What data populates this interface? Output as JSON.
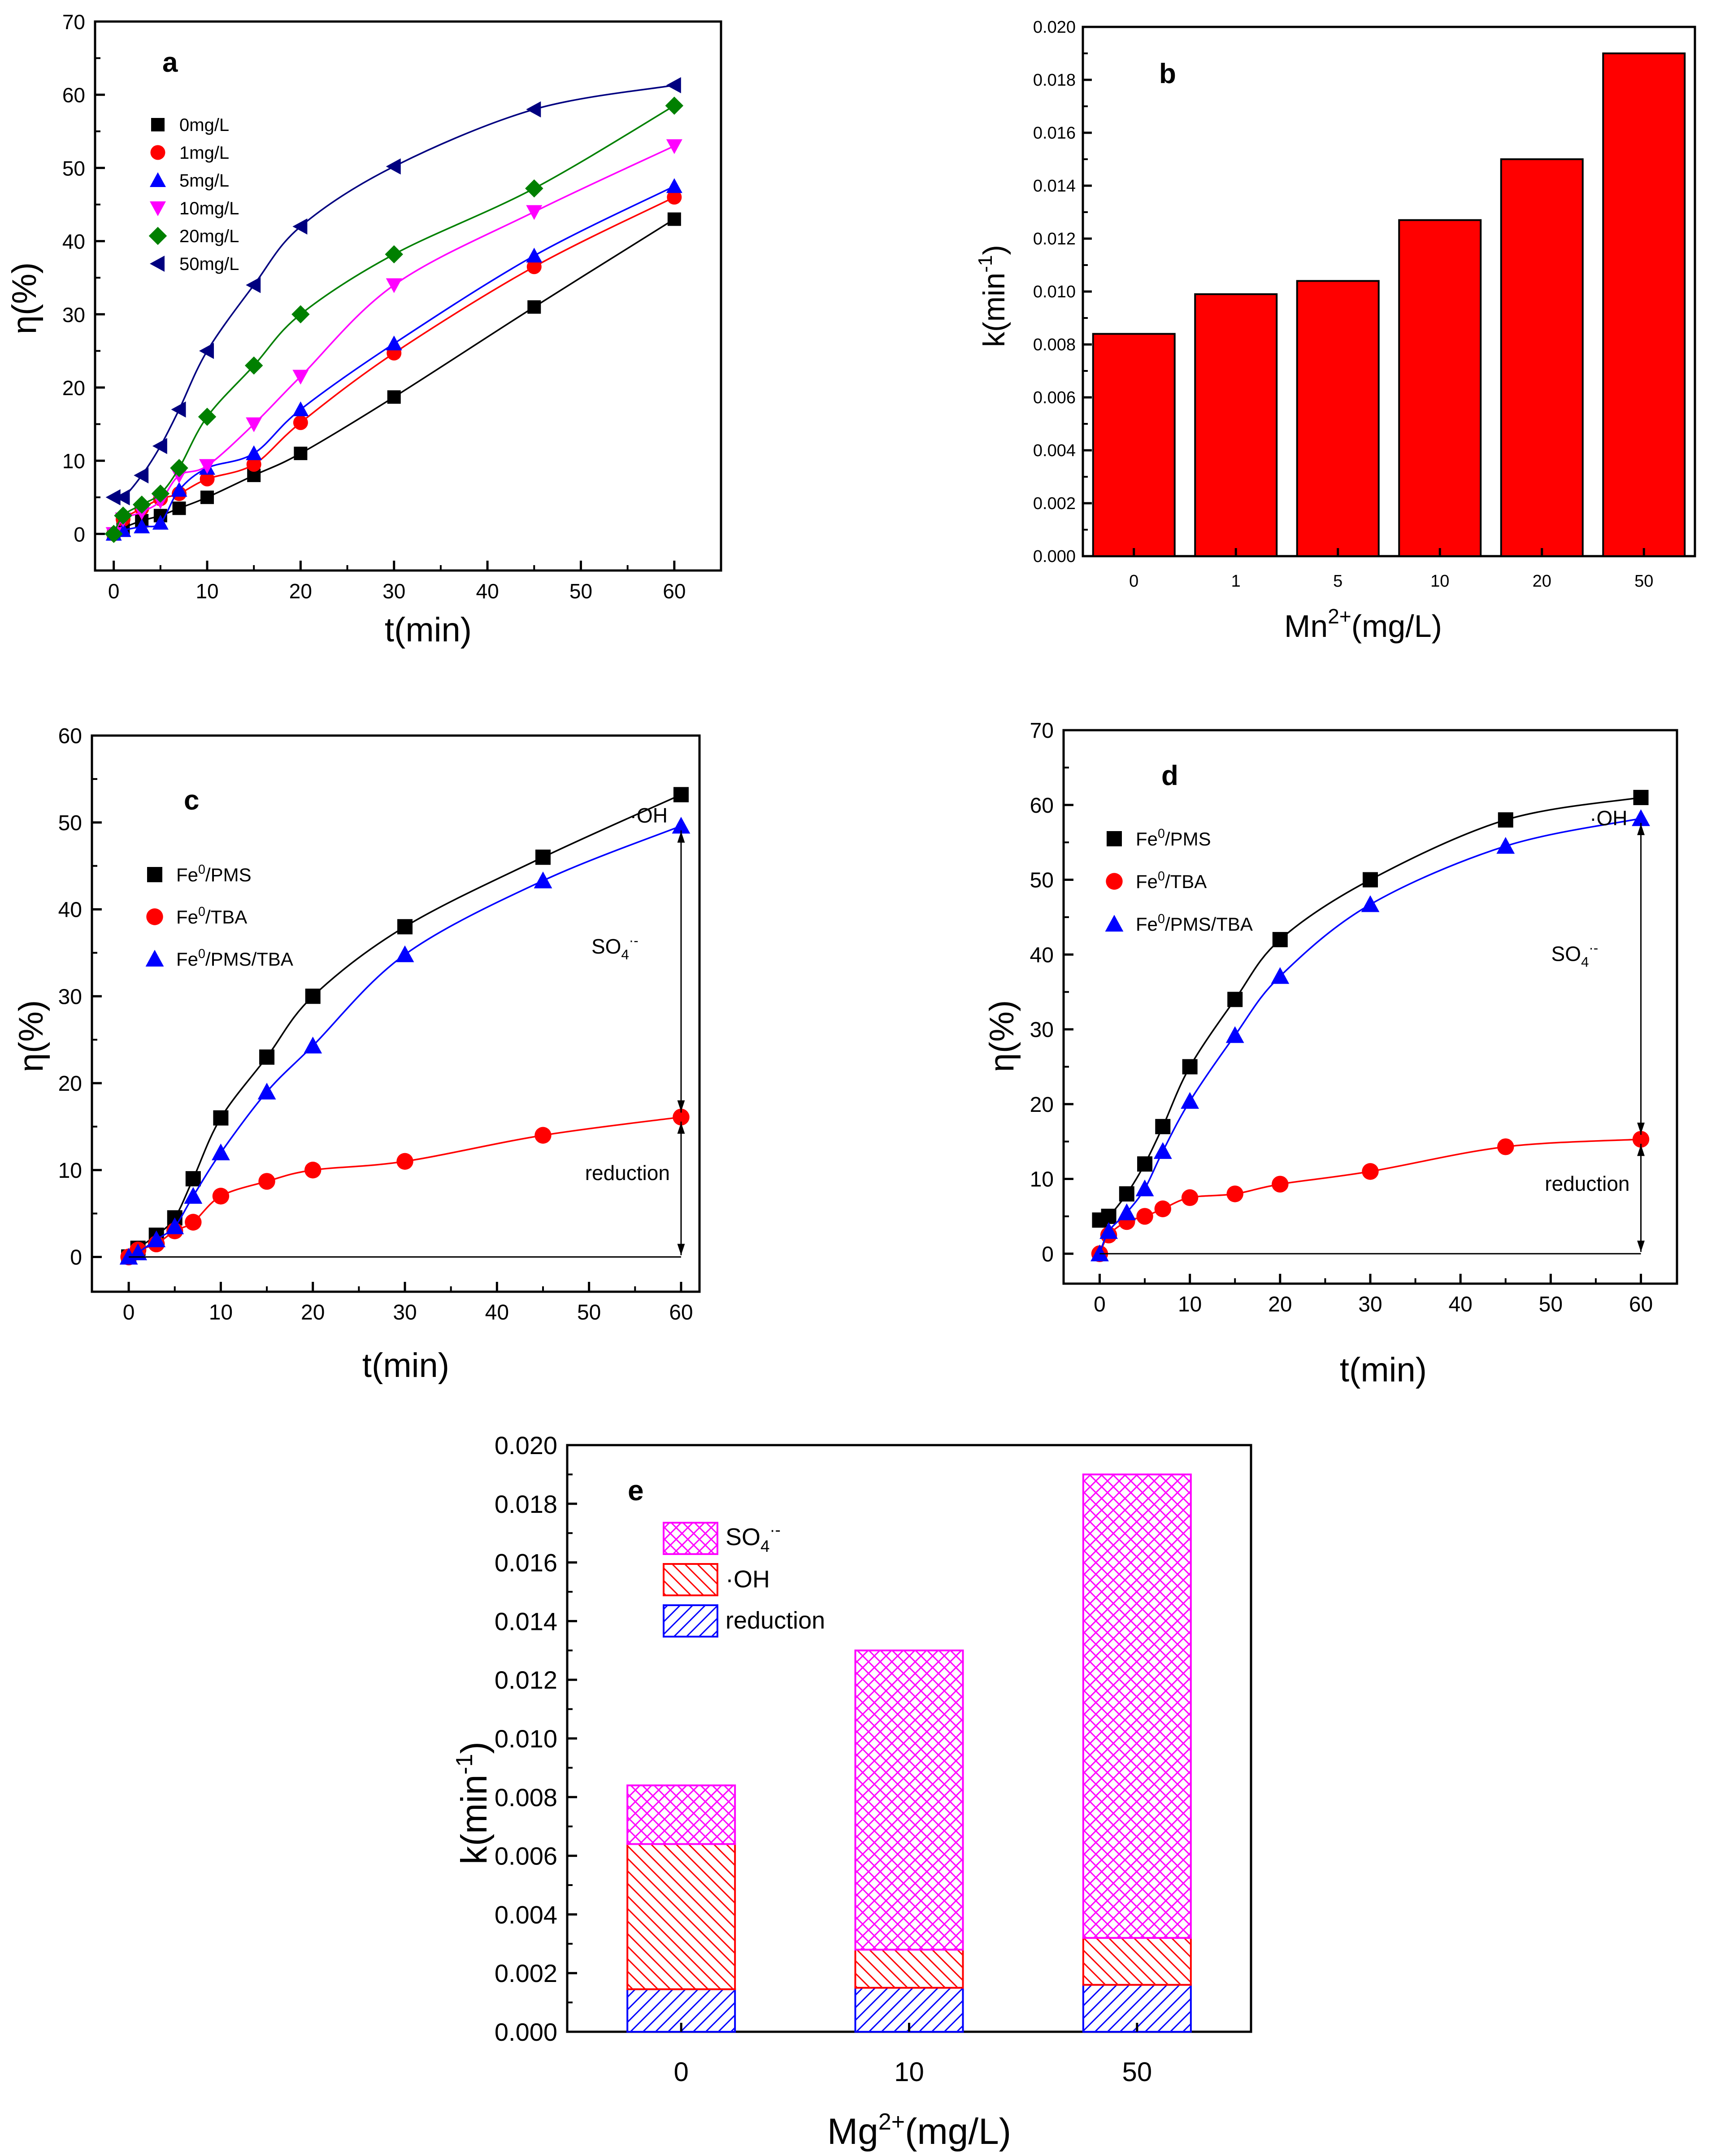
{
  "chart_data": [
    {
      "panel": "a",
      "type": "scatter",
      "fit": "line",
      "xlabel": "t(min)",
      "ylabel": "η(%)",
      "xlim": [
        -2,
        65
      ],
      "ylim": [
        -5,
        70
      ],
      "xticks": [
        "0",
        "10",
        "20",
        "30",
        "40",
        "50",
        "60"
      ],
      "yticks": [
        "0",
        "10",
        "20",
        "30",
        "40",
        "50",
        "60",
        "70"
      ],
      "x": [
        0,
        1,
        3,
        5,
        7,
        10,
        15,
        20,
        30,
        45,
        60
      ],
      "series": [
        {
          "name": "0mg/L",
          "marker": "square",
          "color": "#000000",
          "values": [
            0,
            0.8,
            1.8,
            2.5,
            3.5,
            5,
            8,
            11,
            18.7,
            31,
            43
          ]
        },
        {
          "name": "1mg/L",
          "marker": "circle",
          "color": "#ff0000",
          "values": [
            0,
            2,
            3.5,
            4.8,
            5.5,
            7.5,
            9.5,
            15.2,
            24.7,
            36.5,
            46
          ]
        },
        {
          "name": "5mg/L",
          "marker": "triangle-up",
          "color": "#0000ff",
          "values": [
            0,
            0.5,
            1,
            1.5,
            6,
            9,
            11,
            17,
            26,
            38,
            47.5
          ]
        },
        {
          "name": "10mg/L",
          "marker": "triangle-down",
          "color": "#ff00ff",
          "values": [
            0,
            2,
            3,
            4.5,
            8,
            9.3,
            15,
            21.5,
            34,
            44,
            53
          ]
        },
        {
          "name": "20mg/L",
          "marker": "diamond",
          "color": "#008000",
          "values": [
            0,
            2.5,
            4,
            5.5,
            9,
            16,
            23,
            30,
            38.2,
            47.2,
            58.5
          ]
        },
        {
          "name": "50mg/L",
          "marker": "triangle-left",
          "color": "#000080",
          "values": [
            5,
            5,
            8,
            12,
            17,
            25,
            34,
            42,
            50.2,
            58,
            61.3
          ]
        }
      ]
    },
    {
      "panel": "b",
      "type": "bar",
      "xlabel": "Mn2+(mg/L)",
      "ylabel": "k(min-1)",
      "categories": [
        "0",
        "1",
        "5",
        "10",
        "20",
        "50"
      ],
      "values": [
        0.0084,
        0.0099,
        0.0104,
        0.0127,
        0.015,
        0.019
      ],
      "ylim": [
        0,
        0.02
      ],
      "yticks": [
        "0.000",
        "0.002",
        "0.004",
        "0.006",
        "0.008",
        "0.010",
        "0.012",
        "0.014",
        "0.016",
        "0.018",
        "0.020"
      ],
      "bar_color": "#ff0000"
    },
    {
      "panel": "c",
      "type": "scatter",
      "fit": "line",
      "xlabel": "t(min)",
      "ylabel": "η(%)",
      "xlim": [
        -4,
        62
      ],
      "ylim": [
        -4,
        60
      ],
      "xticks": [
        "0",
        "10",
        "20",
        "30",
        "40",
        "50",
        "60"
      ],
      "yticks": [
        "0",
        "10",
        "20",
        "30",
        "40",
        "50",
        "60"
      ],
      "x": [
        0,
        1,
        3,
        5,
        7,
        10,
        15,
        20,
        30,
        45,
        60
      ],
      "series": [
        {
          "name": "Fe0/PMS",
          "marker": "square",
          "color": "#000000",
          "values": [
            0,
            1,
            2.5,
            4.5,
            9,
            16,
            23,
            30,
            38,
            46,
            53.2
          ]
        },
        {
          "name": "Fe0/TBA",
          "marker": "circle",
          "color": "#ff0000",
          "values": [
            0,
            0.8,
            1.5,
            3,
            4,
            7,
            8.7,
            10,
            11,
            14,
            16.1
          ]
        },
        {
          "name": "Fe0/PMS/TBA",
          "marker": "triangle-up",
          "color": "#0000ff",
          "values": [
            0,
            0.5,
            2,
            3.5,
            7,
            12,
            19,
            24.3,
            34.8,
            43.3,
            49.6
          ]
        }
      ],
      "annotations": {
        "oh": "·OH",
        "so4": "SO4·-",
        "reduction": "reduction"
      }
    },
    {
      "panel": "d",
      "type": "scatter",
      "fit": "line",
      "xlabel": "t(min)",
      "ylabel": "η(%)",
      "xlim": [
        -4,
        64
      ],
      "ylim": [
        -4,
        70
      ],
      "xticks": [
        "0",
        "10",
        "20",
        "30",
        "40",
        "50",
        "60"
      ],
      "yticks": [
        "0",
        "10",
        "20",
        "30",
        "40",
        "50",
        "60",
        "70"
      ],
      "x": [
        0,
        1,
        3,
        5,
        7,
        10,
        15,
        20,
        30,
        45,
        60
      ],
      "series": [
        {
          "name": "Fe0/PMS",
          "marker": "square",
          "color": "#000000",
          "values": [
            4.5,
            5,
            8,
            12,
            17,
            25,
            34,
            42,
            50,
            58,
            61
          ]
        },
        {
          "name": "Fe0/TBA",
          "marker": "circle",
          "color": "#ff0000",
          "values": [
            0,
            2.5,
            4.3,
            5,
            6,
            7.5,
            8,
            9.3,
            11,
            14.3,
            15.3
          ]
        },
        {
          "name": "Fe0/PMS/TBA",
          "marker": "triangle-up",
          "color": "#0000ff",
          "values": [
            0,
            3,
            5.5,
            8.7,
            13.7,
            20.4,
            29.2,
            37.1,
            46.7,
            54.5,
            58.2
          ]
        }
      ],
      "annotations": {
        "oh": "·OH",
        "so4": "SO4·-",
        "reduction": "reduction"
      }
    },
    {
      "panel": "e",
      "type": "bar",
      "stacked": true,
      "xlabel": "Mg2+(mg/L)",
      "ylabel": "k(min-1)",
      "categories": [
        "0",
        "10",
        "50"
      ],
      "ylim": [
        0,
        0.02
      ],
      "yticks": [
        "0.000",
        "0.002",
        "0.004",
        "0.006",
        "0.008",
        "0.010",
        "0.012",
        "0.014",
        "0.016",
        "0.018",
        "0.020"
      ],
      "series": [
        {
          "name": "reduction",
          "color": "#0000ff",
          "pattern": "diagonal-right",
          "values": [
            0.00145,
            0.0015,
            0.0016
          ]
        },
        {
          "name": "·OH",
          "color": "#ff0000",
          "pattern": "diagonal-left",
          "values": [
            0.00495,
            0.0013,
            0.0016
          ]
        },
        {
          "name": "SO4·-",
          "color": "#ff00ff",
          "pattern": "crosshatch",
          "values": [
            0.002,
            0.0102,
            0.0158
          ]
        }
      ],
      "legend_order": [
        "SO4·-",
        "·OH",
        "reduction"
      ]
    }
  ]
}
